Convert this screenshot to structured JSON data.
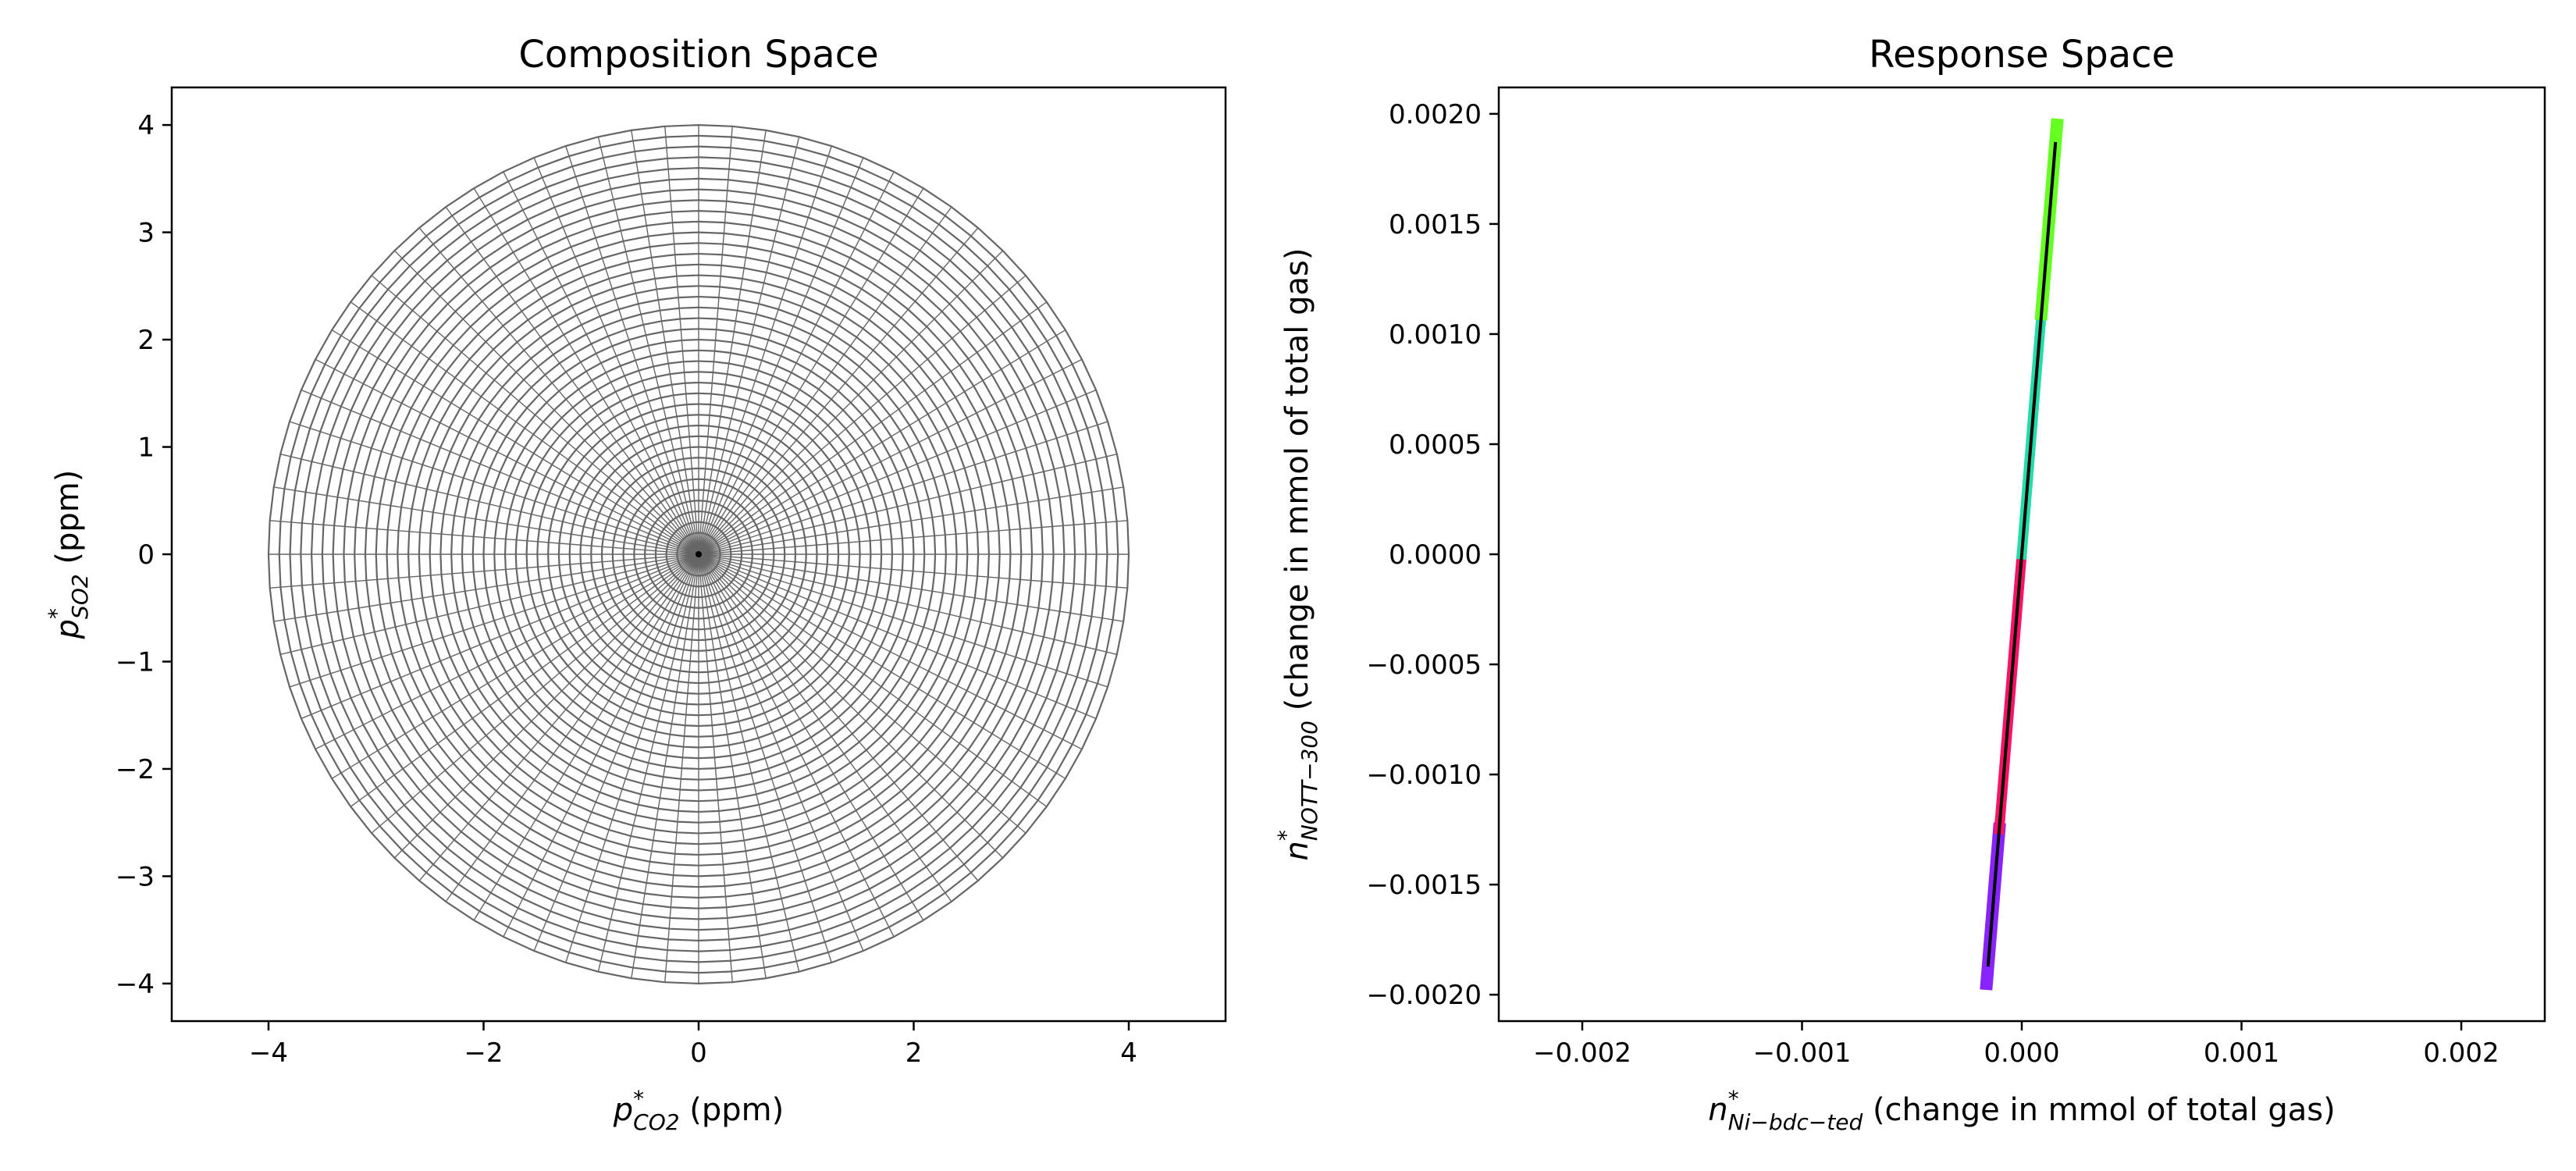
{
  "chart_data": [
    {
      "type": "line",
      "title": "Composition Space",
      "xlabel": {
        "var": "p",
        "sup": "*",
        "sub": "CO2",
        "rest": " (ppm)"
      },
      "ylabel": {
        "var": "p",
        "sup": "*",
        "sub": "SO2",
        "rest": " (ppm)"
      },
      "xlim": [
        -4.9,
        4.9
      ],
      "ylim": [
        -4.35,
        4.35
      ],
      "xticks": [
        -4,
        -2,
        0,
        2,
        4
      ],
      "xtick_labels": [
        "−4",
        "−2",
        "0",
        "2",
        "4"
      ],
      "yticks": [
        -4,
        -3,
        -2,
        -1,
        0,
        1,
        2,
        3,
        4
      ],
      "ytick_labels": [
        "−4",
        "−3",
        "−2",
        "−1",
        "0",
        "1",
        "2",
        "3",
        "4"
      ],
      "grid": false,
      "pattern": "polar mesh of concentric circles and radial lines centered at origin",
      "circle_radii_max": 4.0,
      "circle_count": 40,
      "radial_line_count": 80,
      "line_color": "#666666"
    },
    {
      "type": "line",
      "title": "Response Space",
      "xlabel": {
        "var": "n",
        "sup": "*",
        "sub": "Ni−bdc−ted",
        "rest": " (change in mmol of total gas)"
      },
      "ylabel": {
        "var": "n",
        "sup": "*",
        "sub": "NOTT−300",
        "rest": " (change in mmol of total gas)"
      },
      "xlim": [
        -0.00238,
        0.00238
      ],
      "ylim": [
        -0.00212,
        0.00212
      ],
      "xticks": [
        -0.002,
        -0.001,
        0.0,
        0.001,
        0.002
      ],
      "xtick_labels": [
        "−0.002",
        "−0.001",
        "0.000",
        "0.001",
        "0.002"
      ],
      "yticks": [
        -0.002,
        -0.0015,
        -0.001,
        -0.0005,
        0.0,
        0.0005,
        0.001,
        0.0015,
        0.002
      ],
      "ytick_labels": [
        "−0.0020",
        "−0.0015",
        "−0.0010",
        "−0.0005",
        "0.0000",
        "0.0005",
        "0.0010",
        "0.0015",
        "0.0020"
      ],
      "grid": false,
      "pattern": "thin band of points along a near-vertical line colored by angle",
      "line_start": [
        -0.00016,
        -0.00195
      ],
      "line_end": [
        0.00016,
        0.00195
      ],
      "colors": {
        "top": "#66ff22",
        "upper_mid": "#22ddaa",
        "lower_mid": "#ff1166",
        "bottom": "#8822ff",
        "center_line": "#000000"
      }
    }
  ]
}
